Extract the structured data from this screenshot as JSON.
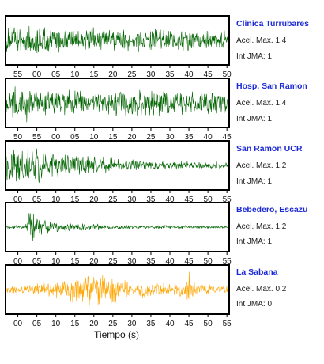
{
  "chart_data": {
    "type": "line",
    "xlabel": "Tiempo (s)",
    "panels": [
      {
        "station": "Clinica Turrubares",
        "accel_label": "Acel. Max. 1.4",
        "jma_label": "Int JMA: 1",
        "accel_max": 1.4,
        "jma": 1,
        "color": "#006400",
        "ticks": [
          "55",
          "00",
          "05",
          "10",
          "15",
          "20",
          "25",
          "30",
          "35",
          "40",
          "45",
          "50"
        ],
        "envelope": [
          [
            0,
            0.7
          ],
          [
            0.05,
            0.75
          ],
          [
            0.2,
            0.65
          ],
          [
            0.5,
            0.6
          ],
          [
            0.8,
            0.55
          ],
          [
            1,
            0.55
          ]
        ]
      },
      {
        "station": "Hosp. San Ramon",
        "accel_label": "Acel. Max. 1.4",
        "jma_label": "Int JMA: 1",
        "accel_max": 1.4,
        "jma": 1,
        "color": "#006400",
        "ticks": [
          "50",
          "55",
          "00",
          "05",
          "10",
          "15",
          "20",
          "25",
          "30",
          "35",
          "40",
          "45"
        ],
        "envelope": [
          [
            0,
            0.8
          ],
          [
            0.1,
            0.85
          ],
          [
            0.3,
            0.6
          ],
          [
            0.45,
            0.55
          ],
          [
            0.5,
            0.7
          ],
          [
            0.7,
            0.6
          ],
          [
            1,
            0.6
          ]
        ]
      },
      {
        "station": "San Ramon UCR",
        "accel_label": "Acel. Max. 1.2",
        "jma_label": "Int JMA: 1",
        "accel_max": 1.2,
        "jma": 1,
        "color": "#006400",
        "ticks": [
          "00",
          "05",
          "10",
          "15",
          "20",
          "25",
          "30",
          "35",
          "40",
          "45",
          "50",
          "55"
        ],
        "envelope": [
          [
            0,
            0.85
          ],
          [
            0.1,
            0.9
          ],
          [
            0.3,
            0.55
          ],
          [
            0.55,
            0.3
          ],
          [
            0.8,
            0.18
          ],
          [
            1,
            0.15
          ]
        ]
      },
      {
        "station": "Bebedero, Escazu",
        "accel_label": "Acel. Max. 1.2",
        "jma_label": "Int JMA: 1",
        "accel_max": 1.2,
        "jma": 1,
        "color": "#006400",
        "ticks": [
          "00",
          "05",
          "10",
          "15",
          "20",
          "25",
          "30",
          "35",
          "40",
          "45",
          "50",
          "55"
        ],
        "envelope": [
          [
            0,
            0.1
          ],
          [
            0.09,
            0.1
          ],
          [
            0.11,
            0.95
          ],
          [
            0.14,
            0.45
          ],
          [
            0.25,
            0.25
          ],
          [
            0.5,
            0.1
          ],
          [
            1,
            0.06
          ]
        ]
      },
      {
        "station": "La Sabana",
        "accel_label": "Acel. Max. 0.2",
        "jma_label": "Int JMA: 0",
        "accel_max": 0.2,
        "jma": 0,
        "color": "#ffa500",
        "ticks": [
          "00",
          "05",
          "10",
          "15",
          "20",
          "25",
          "30",
          "35",
          "40",
          "45",
          "50",
          "55"
        ],
        "envelope": [
          [
            0,
            0.2
          ],
          [
            0.2,
            0.35
          ],
          [
            0.3,
            0.6
          ],
          [
            0.38,
            0.85
          ],
          [
            0.48,
            0.7
          ],
          [
            0.55,
            0.45
          ],
          [
            0.7,
            0.3
          ],
          [
            0.8,
            0.4
          ],
          [
            0.82,
            0.85
          ],
          [
            0.85,
            0.3
          ],
          [
            1,
            0.2
          ]
        ]
      }
    ]
  }
}
